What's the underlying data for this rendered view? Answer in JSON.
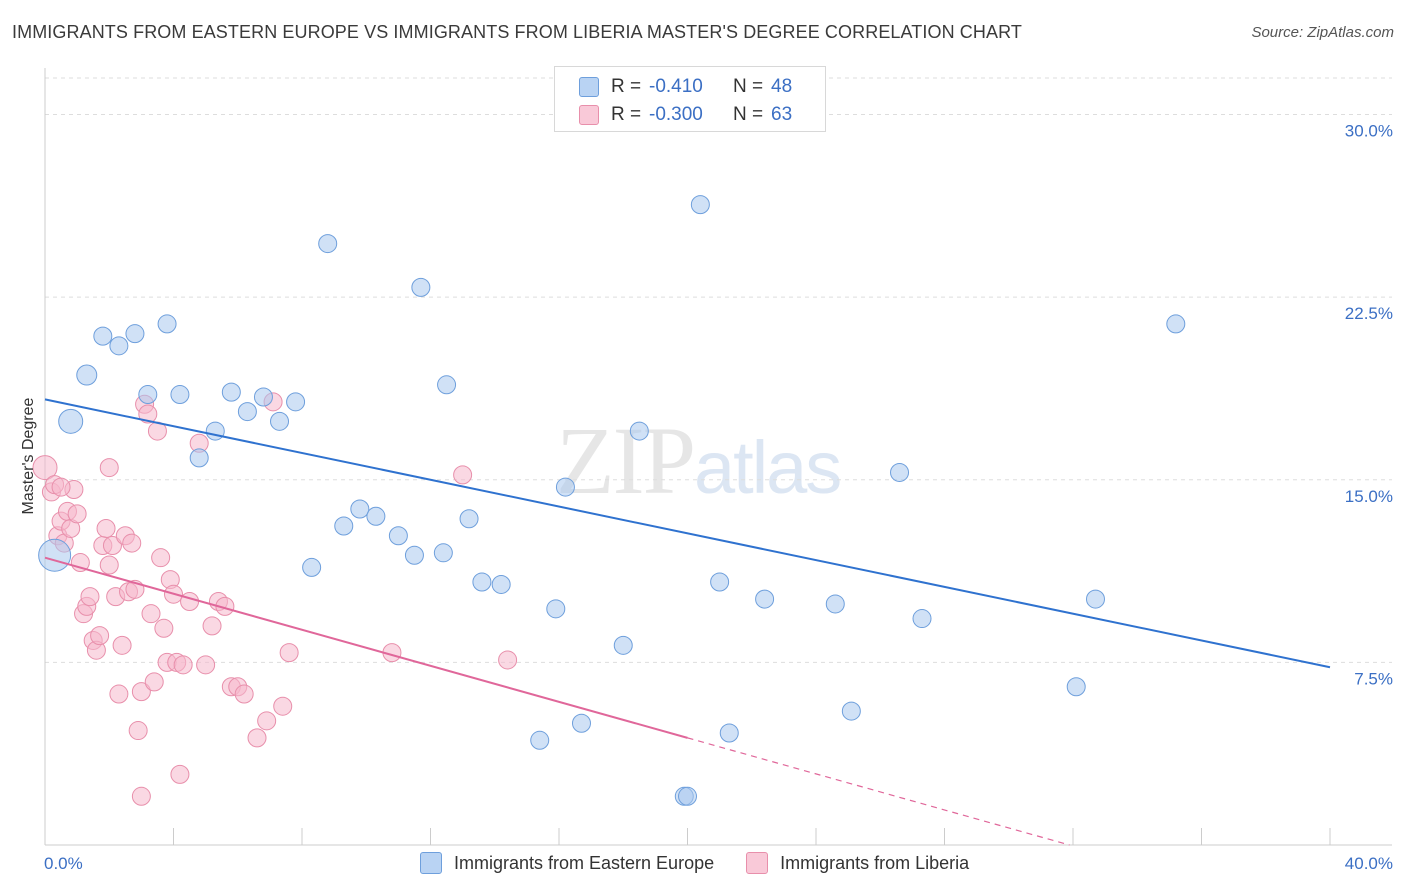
{
  "title": "IMMIGRANTS FROM EASTERN EUROPE VS IMMIGRANTS FROM LIBERIA MASTER'S DEGREE CORRELATION CHART",
  "source": "Source: ZipAtlas.com",
  "watermark": {
    "zip": "ZIP",
    "atlas": "atlas"
  },
  "colors": {
    "blue_fill": "#a9c8ef",
    "blue_stroke": "#6e9fdc",
    "blue_line": "#2f72cf",
    "pink_fill": "#f6b8cc",
    "pink_stroke": "#e88fab",
    "pink_line": "#e0679a",
    "axis_text": "#3b6fc4",
    "grid": "#dddddd"
  },
  "legend": {
    "rows": [
      {
        "r_label": "R =",
        "r_value": "-0.410",
        "n_label": "N =",
        "n_value": "48"
      },
      {
        "r_label": "R =",
        "r_value": "-0.300",
        "n_label": "N =",
        "n_value": "63"
      }
    ]
  },
  "bottom_legend": {
    "series1": "Immigrants from Eastern Europe",
    "series2": "Immigrants from Liberia"
  },
  "chart_data": {
    "type": "scatter",
    "title": "IMMIGRANTS FROM EASTERN EUROPE VS IMMIGRANTS FROM LIBERIA MASTER'S DEGREE CORRELATION CHART",
    "xlabel": "",
    "ylabel": "Master's Degree",
    "xlim": [
      0,
      40
    ],
    "ylim": [
      0,
      31.5
    ],
    "x_tick_labels": {
      "min": "0.0%",
      "max": "40.0%"
    },
    "y_ticks": [
      7.5,
      15.0,
      22.5,
      30.0
    ],
    "y_tick_labels": [
      "7.5%",
      "15.0%",
      "22.5%",
      "30.0%"
    ],
    "x_tick_marks": [
      0,
      4,
      8,
      12,
      16,
      20,
      24,
      28,
      32,
      36,
      40
    ],
    "series": [
      {
        "name": "Immigrants from Eastern Europe",
        "color": "blue",
        "R": -0.41,
        "N": 48,
        "trend": {
          "x0": 0,
          "y0": 18.3,
          "x1": 40,
          "y1": 7.3
        },
        "points": [
          [
            0.3,
            11.9,
            16
          ],
          [
            0.8,
            17.4,
            12
          ],
          [
            1.3,
            19.3,
            10
          ],
          [
            1.8,
            20.9,
            9
          ],
          [
            2.3,
            20.5,
            9
          ],
          [
            2.8,
            21.0,
            9
          ],
          [
            3.2,
            18.5,
            9
          ],
          [
            3.8,
            21.4,
            9
          ],
          [
            4.2,
            18.5,
            9
          ],
          [
            4.8,
            15.9,
            9
          ],
          [
            5.3,
            17.0,
            9
          ],
          [
            5.8,
            18.6,
            9
          ],
          [
            6.3,
            17.8,
            9
          ],
          [
            6.8,
            18.4,
            9
          ],
          [
            7.3,
            17.4,
            9
          ],
          [
            7.8,
            18.2,
            9
          ],
          [
            8.3,
            11.4,
            9
          ],
          [
            8.8,
            24.7,
            9
          ],
          [
            9.3,
            13.1,
            9
          ],
          [
            9.8,
            13.8,
            9
          ],
          [
            10.3,
            13.5,
            9
          ],
          [
            11.0,
            12.7,
            9
          ],
          [
            11.5,
            11.9,
            9
          ],
          [
            11.7,
            22.9,
            9
          ],
          [
            12.4,
            12.0,
            9
          ],
          [
            12.5,
            18.9,
            9
          ],
          [
            13.2,
            13.4,
            9
          ],
          [
            13.6,
            10.8,
            9
          ],
          [
            14.2,
            10.7,
            9
          ],
          [
            15.4,
            4.3,
            9
          ],
          [
            15.9,
            9.7,
            9
          ],
          [
            16.2,
            14.7,
            9
          ],
          [
            16.7,
            5.0,
            9
          ],
          [
            18.0,
            8.2,
            9
          ],
          [
            18.5,
            17.0,
            9
          ],
          [
            19.9,
            2.0,
            9
          ],
          [
            20.4,
            26.3,
            9
          ],
          [
            21.0,
            10.8,
            9
          ],
          [
            21.3,
            4.6,
            9
          ],
          [
            22.4,
            10.1,
            9
          ],
          [
            24.6,
            9.9,
            9
          ],
          [
            25.1,
            5.5,
            9
          ],
          [
            26.6,
            15.3,
            9
          ],
          [
            27.3,
            9.3,
            9
          ],
          [
            32.1,
            6.5,
            9
          ],
          [
            32.7,
            10.1,
            9
          ],
          [
            35.2,
            21.4,
            9
          ],
          [
            20.0,
            2.0,
            9
          ]
        ]
      },
      {
        "name": "Immigrants from Liberia",
        "color": "pink",
        "R": -0.3,
        "N": 63,
        "trend": {
          "x0": 0,
          "y0": 11.8,
          "x1": 20,
          "y1": 4.4,
          "dash_to_x": 40,
          "dash_to_y": -3.1
        },
        "points": [
          [
            0.0,
            15.5,
            12
          ],
          [
            0.2,
            14.5,
            9
          ],
          [
            0.3,
            14.8,
            9
          ],
          [
            0.4,
            12.7,
            9
          ],
          [
            0.5,
            13.3,
            9
          ],
          [
            0.6,
            12.4,
            9
          ],
          [
            0.7,
            13.7,
            9
          ],
          [
            0.8,
            13.0,
            9
          ],
          [
            0.9,
            14.6,
            9
          ],
          [
            1.0,
            13.6,
            9
          ],
          [
            1.1,
            11.6,
            9
          ],
          [
            1.2,
            9.5,
            9
          ],
          [
            1.3,
            9.8,
            9
          ],
          [
            1.4,
            10.2,
            9
          ],
          [
            1.5,
            8.4,
            9
          ],
          [
            1.6,
            8.0,
            9
          ],
          [
            1.7,
            8.6,
            9
          ],
          [
            1.8,
            12.3,
            9
          ],
          [
            1.9,
            13.0,
            9
          ],
          [
            2.0,
            15.5,
            9
          ],
          [
            2.1,
            12.3,
            9
          ],
          [
            2.2,
            10.2,
            9
          ],
          [
            2.3,
            6.2,
            9
          ],
          [
            2.4,
            8.2,
            9
          ],
          [
            2.5,
            12.7,
            9
          ],
          [
            2.6,
            10.4,
            9
          ],
          [
            2.7,
            12.4,
            9
          ],
          [
            2.8,
            10.5,
            9
          ],
          [
            2.9,
            4.7,
            9
          ],
          [
            3.0,
            6.3,
            9
          ],
          [
            3.1,
            18.1,
            9
          ],
          [
            3.2,
            17.7,
            9
          ],
          [
            3.3,
            9.5,
            9
          ],
          [
            3.4,
            6.7,
            9
          ],
          [
            3.5,
            17.0,
            9
          ],
          [
            3.6,
            11.8,
            9
          ],
          [
            3.7,
            8.9,
            9
          ],
          [
            3.8,
            7.5,
            9
          ],
          [
            3.9,
            10.9,
            9
          ],
          [
            4.0,
            10.3,
            9
          ],
          [
            4.1,
            7.5,
            9
          ],
          [
            4.2,
            2.9,
            9
          ],
          [
            4.3,
            7.4,
            9
          ],
          [
            4.5,
            10.0,
            9
          ],
          [
            4.8,
            16.5,
            9
          ],
          [
            5.0,
            7.4,
            9
          ],
          [
            5.2,
            9.0,
            9
          ],
          [
            5.4,
            10.0,
            9
          ],
          [
            5.6,
            9.8,
            9
          ],
          [
            5.8,
            6.5,
            9
          ],
          [
            6.0,
            6.5,
            9
          ],
          [
            6.2,
            6.2,
            9
          ],
          [
            6.6,
            4.4,
            9
          ],
          [
            6.9,
            5.1,
            9
          ],
          [
            7.1,
            18.2,
            9
          ],
          [
            7.4,
            5.7,
            9
          ],
          [
            7.6,
            7.9,
            9
          ],
          [
            10.8,
            7.9,
            9
          ],
          [
            13.0,
            15.2,
            9
          ],
          [
            14.4,
            7.6,
            9
          ],
          [
            3.0,
            2.0,
            9
          ],
          [
            0.5,
            14.7,
            9
          ],
          [
            2.0,
            11.5,
            9
          ]
        ]
      }
    ]
  }
}
